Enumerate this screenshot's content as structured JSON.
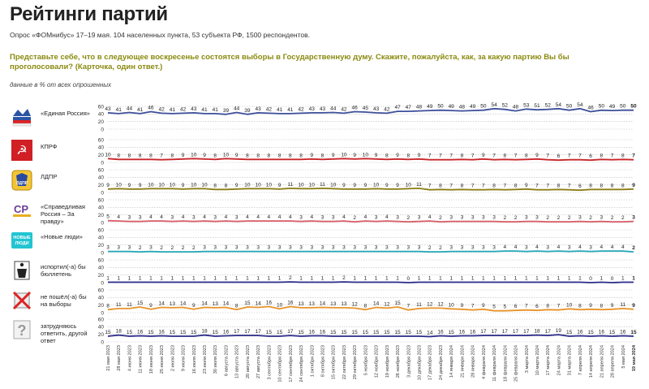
{
  "header": {
    "title": "Рейтинги партий",
    "subtitle": "Опрос «ФОМнибус» 17–19 мая. 104 населенных пункта, 53 субъекта РФ, 1500 респондентов.",
    "question": "Представьте себе, что в следующее воскресенье состоятся выборы в Государственную думу. Скажите, пожалуйста, как, за какую партию Вы бы проголосовали? (Карточка, один ответ.)",
    "note": "данные в % от всех опрошенных"
  },
  "chart_data": {
    "type": "line",
    "dates": [
      "21 мая 2023",
      "28 мая 2023",
      "4 июня 2023",
      "11 июня 2023",
      "18 июня 2023",
      "25 июня 2023",
      "2 июля 2023",
      "9 июля 2023",
      "16 июля 2023",
      "23 июля 2023",
      "30 июля 2023",
      "6 августа 2023",
      "13 августа 2023",
      "20 августа 2023",
      "27 августа 2023",
      "3 сентября 2023",
      "10 сентября 2023",
      "17 сентября 2023",
      "24 сентября 2023",
      "1 октября 2023",
      "8 октября 2023",
      "15 октября 2023",
      "22 октября 2023",
      "29 октября 2023",
      "5 ноября 2023",
      "12 ноября 2023",
      "19 ноября 2023",
      "26 ноября 2023",
      "3 декабря 2023",
      "10 декабря 2023",
      "17 декабря 2023",
      "24 декабря 2023",
      "14 января 2024",
      "21 января 2024",
      "28 января 2024",
      "4 февраля 2024",
      "11 февраля 2024",
      "18 февраля 2024",
      "25 февраля 2024",
      "3 марта 2024",
      "10 марта 2024",
      "17 марта 2024",
      "24 марта 2024",
      "31 марта 2024",
      "7 апреля 2024",
      "14 апреля 2024",
      "21 апреля 2024",
      "28 апреля 2024",
      "5 мая 2024",
      "19 мая 2024"
    ],
    "yticks": [
      0,
      20,
      40,
      60
    ],
    "ylim": [
      0,
      60
    ],
    "series": [
      {
        "name": "«Единая Россия»",
        "color": "#3d4f9a",
        "logo": "er-logo",
        "values": [
          43,
          41,
          44,
          41,
          46,
          42,
          41,
          42,
          43,
          41,
          41,
          39,
          44,
          39,
          43,
          42,
          41,
          41,
          42,
          43,
          43,
          44,
          42,
          46,
          45,
          43,
          42,
          47,
          47,
          48,
          49,
          50,
          49,
          48,
          49,
          50,
          54,
          52,
          48,
          53,
          51,
          52,
          54,
          50,
          54,
          46,
          50,
          49,
          50,
          50
        ]
      },
      {
        "name": "КПРФ",
        "color": "#c8262a",
        "logo": "kprf-logo",
        "values": [
          10,
          8,
          8,
          8,
          8,
          7,
          8,
          9,
          10,
          9,
          8,
          10,
          9,
          8,
          8,
          8,
          8,
          8,
          8,
          9,
          8,
          9,
          10,
          9,
          10,
          9,
          8,
          9,
          8,
          9,
          7,
          7,
          7,
          8,
          7,
          9,
          7,
          8,
          7,
          8,
          9,
          7,
          6,
          7,
          7,
          6,
          8,
          7,
          8,
          7
        ]
      },
      {
        "name": "ЛДПР",
        "color": "#8c7e16",
        "logo": "ldpr-logo",
        "values": [
          9,
          10,
          9,
          9,
          10,
          10,
          10,
          9,
          10,
          10,
          8,
          8,
          9,
          10,
          10,
          10,
          9,
          11,
          10,
          10,
          11,
          10,
          9,
          9,
          9,
          10,
          9,
          9,
          10,
          11,
          7,
          8,
          7,
          8,
          7,
          7,
          8,
          7,
          8,
          9,
          7,
          7,
          8,
          7,
          6,
          8,
          8,
          8,
          8,
          9
        ]
      },
      {
        "name": "«Справедливая Россия – За правду»",
        "color": "#d85a66",
        "logo": "sr-logo",
        "values": [
          5,
          4,
          3,
          3,
          4,
          4,
          3,
          4,
          3,
          4,
          3,
          4,
          3,
          4,
          4,
          4,
          4,
          4,
          3,
          4,
          3,
          3,
          4,
          2,
          4,
          3,
          4,
          3,
          2,
          3,
          4,
          2,
          3,
          3,
          3,
          3,
          3,
          2,
          2,
          3,
          3,
          2,
          2,
          2,
          3,
          2,
          3,
          2,
          2,
          3
        ]
      },
      {
        "name": "«Новые люди»",
        "color": "#22a7b8",
        "logo": "nl-logo",
        "values": [
          3,
          3,
          3,
          2,
          3,
          2,
          2,
          2,
          2,
          3,
          3,
          3,
          3,
          3,
          3,
          3,
          3,
          3,
          3,
          3,
          3,
          3,
          3,
          3,
          3,
          3,
          3,
          3,
          3,
          3,
          2,
          2,
          3,
          3,
          3,
          3,
          3,
          4,
          4,
          3,
          4,
          3,
          4,
          3,
          4,
          3,
          4,
          4,
          4,
          2
        ]
      },
      {
        "name": "испортил(-а) бы бюллетень",
        "color": "#2a2a88",
        "logo": "trash-icon",
        "values": [
          1,
          1,
          1,
          1,
          1,
          1,
          1,
          1,
          1,
          1,
          1,
          1,
          1,
          1,
          1,
          1,
          1,
          2,
          1,
          1,
          1,
          1,
          2,
          1,
          1,
          1,
          1,
          1,
          0,
          1,
          1,
          1,
          1,
          1,
          1,
          1,
          1,
          1,
          1,
          1,
          1,
          1,
          1,
          1,
          1,
          0,
          1,
          0,
          1,
          1
        ]
      },
      {
        "name": "не пошёл(-а) бы на выборы",
        "color": "#e8932a",
        "logo": "noballot-icon",
        "values": [
          8,
          11,
          11,
          15,
          9,
          14,
          13,
          14,
          9,
          14,
          13,
          14,
          8,
          15,
          14,
          16,
          10,
          16,
          13,
          13,
          14,
          13,
          13,
          12,
          8,
          14,
          12,
          15,
          7,
          11,
          12,
          12,
          10,
          9,
          7,
          9,
          5,
          5,
          6,
          7,
          6,
          8,
          7,
          10,
          8,
          9,
          8,
          9,
          11,
          9
        ]
      },
      {
        "name": "затрудняюсь ответить, другой ответ",
        "color": "#2a2a88",
        "logo": "question-icon",
        "values": [
          15,
          18,
          15,
          16,
          15,
          16,
          15,
          15,
          15,
          18,
          15,
          16,
          17,
          17,
          17,
          15,
          15,
          17,
          15,
          16,
          16,
          15,
          15,
          15,
          15,
          15,
          15,
          15,
          15,
          15,
          14,
          16,
          15,
          16,
          16,
          17,
          17,
          17,
          17,
          17,
          18,
          17,
          19,
          15,
          16,
          15,
          16,
          15,
          16,
          15
        ]
      }
    ]
  }
}
